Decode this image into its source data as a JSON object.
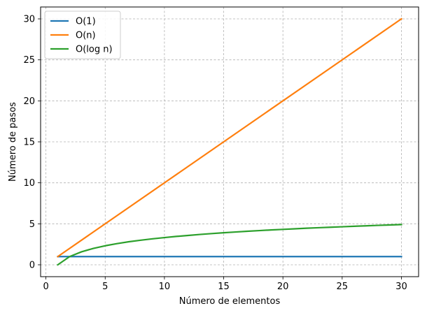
{
  "chart_data": {
    "type": "line",
    "title": "",
    "xlabel": "Número de elementos",
    "ylabel": "Número de pasos",
    "xlim": [
      -0.45,
      31.45
    ],
    "ylim": [
      -1.45,
      31.45
    ],
    "xticks": [
      0,
      5,
      10,
      15,
      20,
      25,
      30
    ],
    "yticks": [
      0,
      5,
      10,
      15,
      20,
      25,
      30
    ],
    "grid": true,
    "legend_position": "top-left",
    "series": [
      {
        "name": "O(1)",
        "color": "#1f77b4",
        "x": [
          1,
          30
        ],
        "y": [
          1,
          1
        ]
      },
      {
        "name": "O(n)",
        "color": "#ff7f0e",
        "x": [
          1,
          30
        ],
        "y": [
          1,
          30
        ]
      },
      {
        "name": "O(log n)",
        "color": "#2ca02c",
        "x": [
          1,
          2,
          3,
          4,
          5,
          6,
          7,
          8,
          9,
          10,
          11,
          12,
          13,
          14,
          15,
          16,
          17,
          18,
          19,
          20,
          21,
          22,
          23,
          24,
          25,
          26,
          27,
          28,
          29,
          30
        ],
        "y": [
          0,
          1,
          1.58,
          2,
          2.32,
          2.58,
          2.81,
          3,
          3.17,
          3.32,
          3.46,
          3.58,
          3.7,
          3.81,
          3.91,
          4,
          4.09,
          4.17,
          4.25,
          4.32,
          4.39,
          4.46,
          4.52,
          4.58,
          4.64,
          4.7,
          4.75,
          4.81,
          4.86,
          4.91
        ]
      }
    ]
  }
}
